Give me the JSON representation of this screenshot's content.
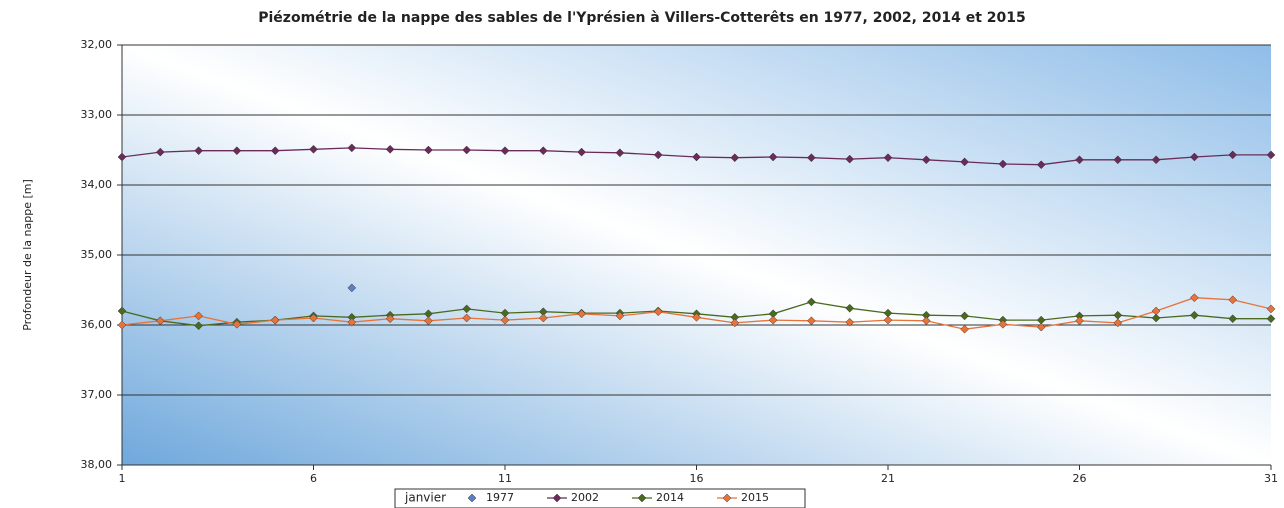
{
  "chart_data": {
    "type": "line",
    "title": "Piézométrie de la nappe des sables de l'Yprésien à Villers-Cotterêts en 1977, 2002, 2014 et 2015",
    "y_label": "Profondeur de la nappe [m]",
    "x_label": "janvier",
    "x": [
      1,
      2,
      3,
      4,
      5,
      6,
      7,
      8,
      9,
      10,
      11,
      12,
      13,
      14,
      15,
      16,
      17,
      18,
      19,
      20,
      21,
      22,
      23,
      24,
      25,
      26,
      27,
      28,
      29,
      30,
      31
    ],
    "xlim": [
      1,
      31
    ],
    "xticks": [
      1,
      6,
      11,
      16,
      21,
      26,
      31
    ],
    "ylim": [
      32,
      38
    ],
    "y_inverted": true,
    "yticks": [
      {
        "value": 32,
        "label": "32,00"
      },
      {
        "value": 33,
        "label": "33,00"
      },
      {
        "value": 34,
        "label": "34,00"
      },
      {
        "value": 35,
        "label": "35,00"
      },
      {
        "value": 36,
        "label": "36,00"
      },
      {
        "value": 37,
        "label": "37,00"
      },
      {
        "value": 38,
        "label": "38,00"
      }
    ],
    "grid": true,
    "legend": "bottom",
    "series": [
      {
        "name": "1977",
        "color": "#5b7fc7",
        "line": false,
        "values": [
          null,
          null,
          null,
          null,
          null,
          null,
          35.47,
          null,
          null,
          null,
          null,
          null,
          null,
          null,
          null,
          null,
          null,
          null,
          null,
          null,
          null,
          null,
          null,
          null,
          null,
          null,
          null,
          null,
          null,
          null,
          null
        ]
      },
      {
        "name": "2002",
        "color": "#6b2b5a",
        "line": true,
        "values": [
          33.6,
          33.53,
          33.51,
          33.51,
          33.51,
          33.49,
          33.47,
          33.49,
          33.5,
          33.5,
          33.51,
          33.51,
          33.53,
          33.54,
          33.57,
          33.6,
          33.61,
          33.6,
          33.61,
          33.63,
          33.61,
          33.64,
          33.67,
          33.7,
          33.71,
          33.64,
          33.64,
          33.64,
          33.6,
          33.57,
          33.57
        ]
      },
      {
        "name": "2014",
        "color": "#4a6b1f",
        "line": true,
        "values": [
          35.8,
          35.94,
          36.01,
          35.96,
          35.93,
          35.87,
          35.89,
          35.86,
          35.84,
          35.77,
          35.83,
          35.81,
          35.83,
          35.83,
          35.8,
          35.84,
          35.89,
          35.84,
          35.67,
          35.76,
          35.83,
          35.86,
          35.87,
          35.93,
          35.93,
          35.87,
          35.86,
          35.9,
          35.86,
          35.91,
          35.91
        ]
      },
      {
        "name": "2015",
        "color": "#e8733a",
        "line": true,
        "values": [
          36.0,
          35.94,
          35.87,
          35.99,
          35.93,
          35.9,
          35.96,
          35.91,
          35.94,
          35.9,
          35.93,
          35.9,
          35.84,
          35.87,
          35.81,
          35.89,
          35.97,
          35.93,
          35.94,
          35.96,
          35.93,
          35.94,
          36.06,
          35.99,
          36.03,
          35.94,
          35.97,
          35.8,
          35.61,
          35.64,
          35.77
        ]
      }
    ]
  }
}
